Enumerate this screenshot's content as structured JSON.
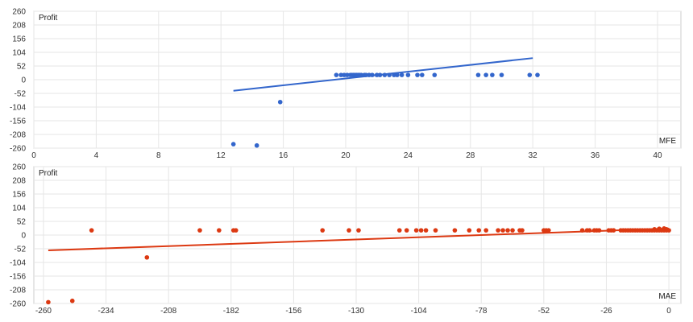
{
  "chart_data": [
    {
      "type": "scatter",
      "series_color": "#3366cc",
      "ylabel": "Profit",
      "xlabel": "MFE",
      "xlim": [
        0,
        41.5
      ],
      "ylim": [
        -260,
        260
      ],
      "xticks": [
        "0",
        "4",
        "8",
        "12",
        "16",
        "20",
        "24",
        "28",
        "32",
        "36",
        "40"
      ],
      "yticks": [
        "260",
        "208",
        "156",
        "104",
        "52",
        "0",
        "-52",
        "-104",
        "-156",
        "-208",
        "-260"
      ],
      "trendline": [
        [
          12.8,
          -42
        ],
        [
          32,
          82
        ]
      ],
      "points": [
        [
          12.8,
          -245
        ],
        [
          14.3,
          -250
        ],
        [
          15.8,
          -85
        ],
        [
          19.4,
          18
        ],
        [
          19.7,
          18
        ],
        [
          19.9,
          18
        ],
        [
          20.1,
          18
        ],
        [
          20.3,
          18
        ],
        [
          20.4,
          18
        ],
        [
          20.5,
          18
        ],
        [
          20.6,
          18
        ],
        [
          20.7,
          18
        ],
        [
          20.8,
          18
        ],
        [
          20.9,
          18
        ],
        [
          21.0,
          18
        ],
        [
          21.2,
          18
        ],
        [
          21.3,
          18
        ],
        [
          21.5,
          18
        ],
        [
          21.7,
          18
        ],
        [
          22.0,
          18
        ],
        [
          22.2,
          18
        ],
        [
          22.5,
          18
        ],
        [
          22.8,
          18
        ],
        [
          23.1,
          18
        ],
        [
          23.3,
          18
        ],
        [
          23.6,
          18
        ],
        [
          24.0,
          18
        ],
        [
          24.6,
          18
        ],
        [
          24.9,
          18
        ],
        [
          25.7,
          18
        ],
        [
          28.5,
          18
        ],
        [
          29.0,
          18
        ],
        [
          29.4,
          18
        ],
        [
          30.0,
          18
        ],
        [
          31.8,
          18
        ],
        [
          32.3,
          18
        ]
      ]
    },
    {
      "type": "scatter",
      "series_color": "#dc3912",
      "ylabel": "Profit",
      "xlabel": "MAE",
      "xlim": [
        -264,
        5
      ],
      "ylim": [
        -260,
        260
      ],
      "xticks": [
        "-260",
        "-234",
        "-208",
        "-182",
        "-156",
        "-130",
        "-104",
        "-78",
        "-52",
        "-26",
        "0"
      ],
      "yticks": [
        "260",
        "208",
        "156",
        "104",
        "52",
        "0",
        "-52",
        "-104",
        "-156",
        "-208",
        "-260"
      ],
      "trendline": [
        [
          -258,
          -58
        ],
        [
          0,
          25
        ]
      ],
      "points": [
        [
          -258,
          -255
        ],
        [
          -248,
          -250
        ],
        [
          -240,
          18
        ],
        [
          -217,
          -85
        ],
        [
          -195,
          18
        ],
        [
          -187,
          18
        ],
        [
          -181,
          18
        ],
        [
          -180,
          18
        ],
        [
          -144,
          18
        ],
        [
          -133,
          18
        ],
        [
          -129,
          18
        ],
        [
          -112,
          18
        ],
        [
          -109,
          18
        ],
        [
          -105,
          18
        ],
        [
          -103,
          18
        ],
        [
          -101,
          18
        ],
        [
          -97,
          18
        ],
        [
          -89,
          18
        ],
        [
          -83,
          18
        ],
        [
          -79,
          18
        ],
        [
          -76,
          18
        ],
        [
          -71,
          18
        ],
        [
          -69,
          18
        ],
        [
          -67,
          18
        ],
        [
          -65,
          18
        ],
        [
          -62,
          18
        ],
        [
          -61,
          18
        ],
        [
          -52,
          18
        ],
        [
          -51,
          18
        ],
        [
          -50,
          18
        ],
        [
          -36,
          18
        ],
        [
          -34,
          18
        ],
        [
          -33,
          18
        ],
        [
          -31,
          18
        ],
        [
          -30,
          18
        ],
        [
          -29,
          18
        ],
        [
          -25,
          18
        ],
        [
          -24,
          18
        ],
        [
          -23,
          18
        ],
        [
          -20,
          18
        ],
        [
          -19,
          18
        ],
        [
          -18,
          18
        ],
        [
          -17,
          18
        ],
        [
          -16,
          18
        ],
        [
          -15,
          18
        ],
        [
          -14,
          18
        ],
        [
          -13,
          18
        ],
        [
          -12,
          18
        ],
        [
          -11,
          18
        ],
        [
          -10,
          18
        ],
        [
          -9,
          18
        ],
        [
          -8,
          18
        ],
        [
          -7,
          18
        ],
        [
          -6,
          18
        ],
        [
          -5,
          18
        ],
        [
          -4,
          18
        ],
        [
          -3,
          18
        ],
        [
          -2,
          18
        ],
        [
          -1,
          18
        ],
        [
          0,
          18
        ],
        [
          -6,
          22
        ],
        [
          -4,
          24
        ],
        [
          -2,
          25
        ],
        [
          -1,
          22
        ]
      ]
    }
  ]
}
